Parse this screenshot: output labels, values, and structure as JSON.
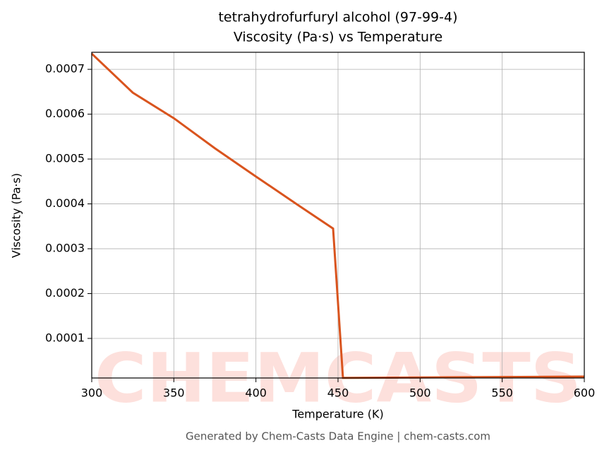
{
  "chart_data": {
    "type": "line",
    "title": "tetrahydrofurfuryl alcohol (97-99-4)",
    "subtitle": "Viscosity (Pa·s) vs Temperature",
    "x_label": "Temperature (K)",
    "y_label": "Viscosity (Pa·s)",
    "footer": "Generated by Chem-Casts Data Engine | chem-casts.com",
    "watermark": "CHEMCASTS",
    "x": [
      300,
      325,
      350,
      375,
      400,
      425,
      447,
      453,
      500,
      550,
      600
    ],
    "series": [
      {
        "name": "Viscosity",
        "color": "#d9541e",
        "values": [
          0.000735,
          0.000648,
          0.000591,
          0.000524,
          0.000461,
          0.000399,
          0.000345,
          1.2e-05,
          1.3e-05,
          1.4e-05,
          1.5e-05
        ]
      }
    ],
    "xlim": [
      300,
      600
    ],
    "xticks": [
      300,
      350,
      400,
      450,
      500,
      550,
      600
    ],
    "ylim": [
      1.18e-05,
      0.000738
    ],
    "yticks": [
      0.0001,
      0.0002,
      0.0003,
      0.0004,
      0.0005,
      0.0006,
      0.0007
    ],
    "grid": true
  }
}
